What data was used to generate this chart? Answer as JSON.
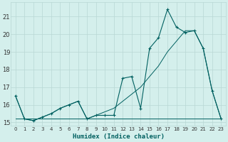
{
  "xlabel": "Humidex (Indice chaleur)",
  "bg_color": "#d4efec",
  "grid_color": "#b8d8d4",
  "line_color": "#006060",
  "xlim": [
    -0.5,
    23.5
  ],
  "ylim": [
    14.8,
    21.8
  ],
  "yticks": [
    15,
    16,
    17,
    18,
    19,
    20,
    21
  ],
  "xticks": [
    0,
    1,
    2,
    3,
    4,
    5,
    6,
    7,
    8,
    9,
    10,
    11,
    12,
    13,
    14,
    15,
    16,
    17,
    18,
    19,
    20,
    21,
    22,
    23
  ],
  "series_jagged": [
    16.5,
    15.2,
    15.1,
    15.3,
    15.5,
    15.8,
    16.0,
    16.2,
    15.2,
    15.4,
    15.4,
    15.4,
    17.5,
    17.6,
    15.8,
    19.2,
    19.8,
    21.4,
    20.4,
    20.1,
    20.2,
    19.2,
    16.8,
    15.2
  ],
  "series_diagonal": [
    16.5,
    15.2,
    15.1,
    15.3,
    15.5,
    15.8,
    16.0,
    16.2,
    15.2,
    15.4,
    15.6,
    15.8,
    16.2,
    16.6,
    17.0,
    17.6,
    18.2,
    19.0,
    19.6,
    20.2,
    20.2,
    19.2,
    16.8,
    15.2
  ],
  "series_flat": [
    15.2,
    15.2,
    15.2,
    15.2,
    15.2,
    15.2,
    15.2,
    15.2,
    15.2,
    15.2,
    15.2,
    15.2,
    15.2,
    15.2,
    15.2,
    15.2,
    15.2,
    15.2,
    15.2,
    15.2,
    15.2,
    15.2,
    15.2,
    15.2
  ]
}
